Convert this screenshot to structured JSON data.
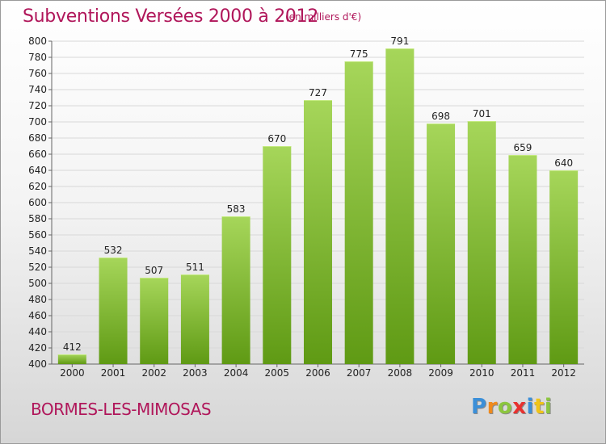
{
  "title": "Subventions Versées 2000 à 2012",
  "unit_note": "(en milliers d'€)",
  "commune": "BORMES-LES-MIMOSAS",
  "logo": {
    "letters": [
      "P",
      "r",
      "o",
      "x",
      "i",
      "t",
      "i"
    ],
    "colors": [
      "#3b8fd8",
      "#f08a1c",
      "#8cc63f",
      "#e8312f",
      "#3b8fd8",
      "#f0c419",
      "#8cc63f"
    ]
  },
  "colors": {
    "title": "#b0165a",
    "bar_top": "#a6d65a",
    "bar_bottom": "#5f9a14"
  },
  "chart_data": {
    "type": "bar",
    "categories": [
      "2000",
      "2001",
      "2002",
      "2003",
      "2004",
      "2005",
      "2006",
      "2007",
      "2008",
      "2009",
      "2010",
      "2011",
      "2012"
    ],
    "values": [
      412,
      532,
      507,
      511,
      583,
      670,
      727,
      775,
      791,
      698,
      701,
      659,
      640
    ],
    "data_labels": [
      "412",
      "532",
      "507",
      "511",
      "583",
      "670",
      "727",
      "775",
      "791",
      "698",
      "701",
      "659",
      "640"
    ],
    "ylim": [
      400,
      800
    ],
    "yticks": [
      400,
      420,
      440,
      460,
      480,
      500,
      520,
      540,
      560,
      580,
      600,
      620,
      640,
      660,
      680,
      700,
      720,
      740,
      760,
      780,
      800
    ],
    "grid": true
  }
}
